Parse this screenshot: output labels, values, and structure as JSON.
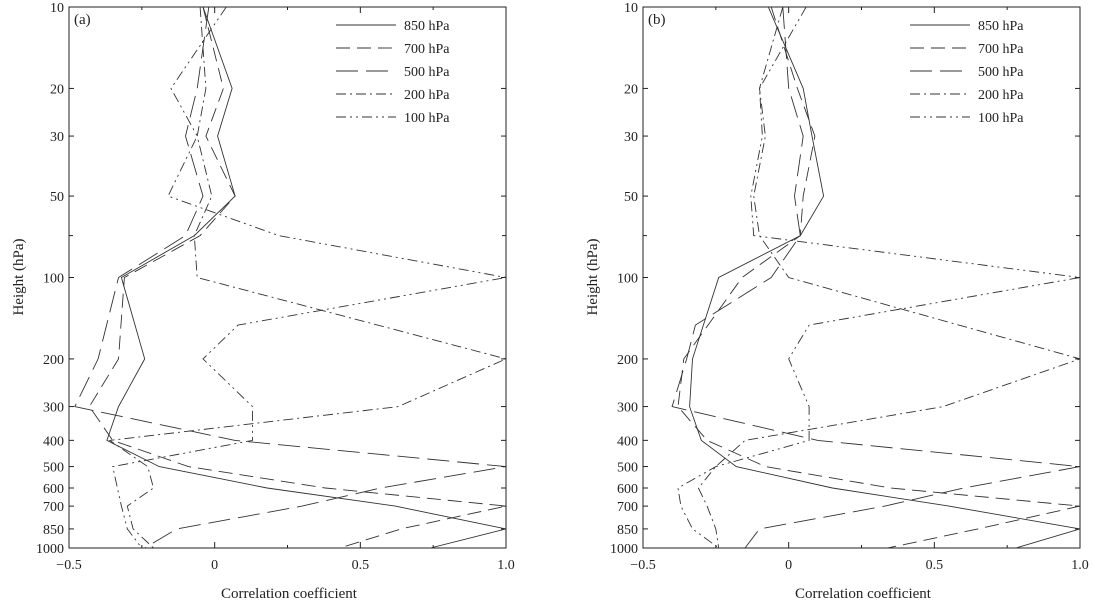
{
  "chart_data": [
    {
      "type": "line",
      "panel_label": "(a)",
      "xlabel": "Correlation coefficient",
      "ylabel": "Height (hPa)",
      "xlim": [
        -0.5,
        1.0
      ],
      "ylim": [
        1000,
        10
      ],
      "y_scale": "log",
      "x_ticks": [
        "−0.5",
        "0",
        "0.5",
        "1.0"
      ],
      "y_ticks": [
        "10",
        "20",
        "30",
        "50",
        "100",
        "200",
        "300",
        "400",
        "500",
        "600",
        "700",
        "850",
        "1000"
      ],
      "legend_position": "top-right",
      "series": [
        {
          "name": "850 hPa",
          "dash": "",
          "points": [
            [
              -0.04,
              10
            ],
            [
              0.06,
              20
            ],
            [
              0.01,
              30
            ],
            [
              0.07,
              50
            ],
            [
              -0.07,
              70
            ],
            [
              -0.32,
              100
            ],
            [
              -0.24,
              200
            ],
            [
              -0.33,
              300
            ],
            [
              -0.37,
              400
            ],
            [
              -0.19,
              500
            ],
            [
              0.18,
              600
            ],
            [
              0.62,
              700
            ],
            [
              1.0,
              850
            ],
            [
              0.74,
              1000
            ]
          ]
        },
        {
          "name": "700 hPa",
          "dash": "14,7",
          "points": [
            [
              -0.04,
              10
            ],
            [
              0.03,
              20
            ],
            [
              -0.03,
              30
            ],
            [
              0.07,
              50
            ],
            [
              -0.05,
              70
            ],
            [
              -0.31,
              100
            ],
            [
              -0.33,
              200
            ],
            [
              -0.43,
              300
            ],
            [
              -0.35,
              400
            ],
            [
              -0.09,
              500
            ],
            [
              0.38,
              600
            ],
            [
              1.0,
              700
            ],
            [
              0.64,
              850
            ],
            [
              0.43,
              1000
            ]
          ]
        },
        {
          "name": "500 hPa",
          "dash": "22,8",
          "points": [
            [
              -0.02,
              10
            ],
            [
              -0.06,
              20
            ],
            [
              -0.1,
              30
            ],
            [
              -0.04,
              50
            ],
            [
              -0.1,
              70
            ],
            [
              -0.33,
              100
            ],
            [
              -0.4,
              200
            ],
            [
              -0.48,
              300
            ],
            [
              0.07,
              400
            ],
            [
              1.0,
              500
            ],
            [
              0.57,
              600
            ],
            [
              0.3,
              700
            ],
            [
              -0.13,
              850
            ],
            [
              -0.24,
              1000
            ]
          ]
        },
        {
          "name": "200 hPa",
          "dash": "10,4,2,4",
          "points": [
            [
              -0.05,
              10
            ],
            [
              -0.03,
              20
            ],
            [
              -0.06,
              30
            ],
            [
              -0.01,
              50
            ],
            [
              -0.07,
              70
            ],
            [
              -0.06,
              100
            ],
            [
              1.0,
              200
            ],
            [
              0.63,
              300
            ],
            [
              -0.36,
              400
            ],
            [
              -0.23,
              500
            ],
            [
              -0.21,
              600
            ],
            [
              -0.3,
              700
            ],
            [
              -0.28,
              850
            ],
            [
              -0.21,
              1000
            ]
          ]
        },
        {
          "name": "100 hPa",
          "dash": "10,4,2,4,2,4",
          "points": [
            [
              0.04,
              10
            ],
            [
              -0.15,
              20
            ],
            [
              -0.06,
              30
            ],
            [
              -0.16,
              50
            ],
            [
              0.22,
              70
            ],
            [
              1.0,
              100
            ],
            [
              0.08,
              150
            ],
            [
              -0.04,
              200
            ],
            [
              0.13,
              300
            ],
            [
              0.13,
              400
            ],
            [
              -0.35,
              500
            ],
            [
              -0.32,
              700
            ],
            [
              -0.3,
              850
            ],
            [
              -0.25,
              1000
            ]
          ]
        }
      ]
    },
    {
      "type": "line",
      "panel_label": "(b)",
      "xlabel": "Correlation coefficient",
      "ylabel": "Height (hPa)",
      "xlim": [
        -0.5,
        1.0
      ],
      "ylim": [
        1000,
        10
      ],
      "y_scale": "log",
      "x_ticks": [
        "−0.5",
        "0",
        "0.5",
        "1.0"
      ],
      "y_ticks": [
        "10",
        "20",
        "30",
        "50",
        "100",
        "200",
        "300",
        "400",
        "500",
        "600",
        "700",
        "850",
        "1000"
      ],
      "legend_position": "top-right",
      "series": [
        {
          "name": "850 hPa",
          "dash": "",
          "points": [
            [
              -0.07,
              10
            ],
            [
              0.05,
              20
            ],
            [
              0.08,
              30
            ],
            [
              0.12,
              50
            ],
            [
              0.04,
              70
            ],
            [
              -0.24,
              100
            ],
            [
              -0.33,
              200
            ],
            [
              -0.34,
              300
            ],
            [
              -0.3,
              400
            ],
            [
              -0.18,
              500
            ],
            [
              0.15,
              600
            ],
            [
              0.55,
              700
            ],
            [
              1.0,
              850
            ],
            [
              0.78,
              1000
            ]
          ]
        },
        {
          "name": "700 hPa",
          "dash": "14,7",
          "points": [
            [
              -0.06,
              10
            ],
            [
              0.03,
              20
            ],
            [
              0.09,
              30
            ],
            [
              0.05,
              50
            ],
            [
              0.04,
              70
            ],
            [
              -0.16,
              100
            ],
            [
              -0.36,
              200
            ],
            [
              -0.38,
              300
            ],
            [
              -0.28,
              400
            ],
            [
              -0.08,
              500
            ],
            [
              0.35,
              600
            ],
            [
              1.0,
              700
            ],
            [
              0.65,
              850
            ],
            [
              0.34,
              1000
            ]
          ]
        },
        {
          "name": "500 hPa",
          "dash": "22,8",
          "points": [
            [
              -0.02,
              10
            ],
            [
              0.0,
              20
            ],
            [
              0.05,
              30
            ],
            [
              0.02,
              50
            ],
            [
              0.04,
              70
            ],
            [
              -0.06,
              100
            ],
            [
              -0.32,
              150
            ],
            [
              -0.35,
              200
            ],
            [
              -0.4,
              300
            ],
            [
              0.1,
              400
            ],
            [
              1.0,
              500
            ],
            [
              0.6,
              600
            ],
            [
              0.33,
              700
            ],
            [
              -0.1,
              850
            ],
            [
              -0.15,
              1000
            ]
          ]
        },
        {
          "name": "200 hPa",
          "dash": "10,4,2,4",
          "points": [
            [
              -0.02,
              10
            ],
            [
              -0.1,
              20
            ],
            [
              -0.08,
              30
            ],
            [
              -0.12,
              50
            ],
            [
              -0.1,
              70
            ],
            [
              0.0,
              100
            ],
            [
              1.0,
              200
            ],
            [
              0.53,
              300
            ],
            [
              -0.15,
              400
            ],
            [
              -0.25,
              500
            ],
            [
              -0.31,
              600
            ],
            [
              -0.28,
              700
            ],
            [
              -0.25,
              850
            ],
            [
              -0.24,
              1000
            ]
          ]
        },
        {
          "name": "100 hPa",
          "dash": "10,4,2,4,2,4",
          "points": [
            [
              0.06,
              10
            ],
            [
              -0.1,
              20
            ],
            [
              -0.09,
              30
            ],
            [
              -0.13,
              50
            ],
            [
              -0.12,
              70
            ],
            [
              1.0,
              100
            ],
            [
              0.07,
              150
            ],
            [
              0.0,
              200
            ],
            [
              0.07,
              300
            ],
            [
              0.07,
              400
            ],
            [
              -0.25,
              500
            ],
            [
              -0.38,
              600
            ],
            [
              -0.37,
              700
            ],
            [
              -0.33,
              850
            ],
            [
              -0.24,
              1000
            ]
          ]
        }
      ]
    }
  ]
}
